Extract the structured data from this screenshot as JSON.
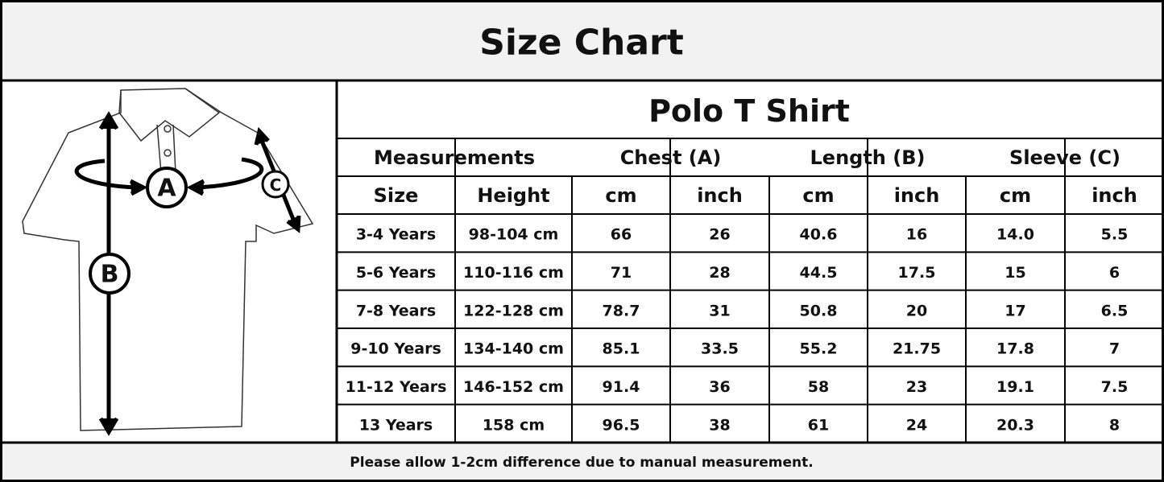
{
  "header": {
    "title": "Size Chart"
  },
  "diagram": {
    "labels": [
      "A",
      "B",
      "C"
    ]
  },
  "table": {
    "title": "Polo T Shirt",
    "group_headers": [
      "Measurements",
      "Chest (A)",
      "Length (B)",
      "Sleeve (C)"
    ],
    "sub_headers": [
      "Size",
      "Height",
      "cm",
      "inch",
      "cm",
      "inch",
      "cm",
      "inch"
    ],
    "rows": [
      [
        "3-4 Years",
        "98-104 cm",
        "66",
        "26",
        "40.6",
        "16",
        "14.0",
        "5.5"
      ],
      [
        "5-6 Years",
        "110-116 cm",
        "71",
        "28",
        "44.5",
        "17.5",
        "15",
        "6"
      ],
      [
        "7-8 Years",
        "122-128 cm",
        "78.7",
        "31",
        "50.8",
        "20",
        "17",
        "6.5"
      ],
      [
        "9-10 Years",
        "134-140 cm",
        "85.1",
        "33.5",
        "55.2",
        "21.75",
        "17.8",
        "7"
      ],
      [
        "11-12 Years",
        "146-152 cm",
        "91.4",
        "36",
        "58",
        "23",
        "19.1",
        "7.5"
      ],
      [
        "13 Years",
        "158 cm",
        "96.5",
        "38",
        "61",
        "24",
        "20.3",
        "8"
      ]
    ]
  },
  "footer": {
    "note": "Please allow 1-2cm difference due to manual measurement."
  }
}
